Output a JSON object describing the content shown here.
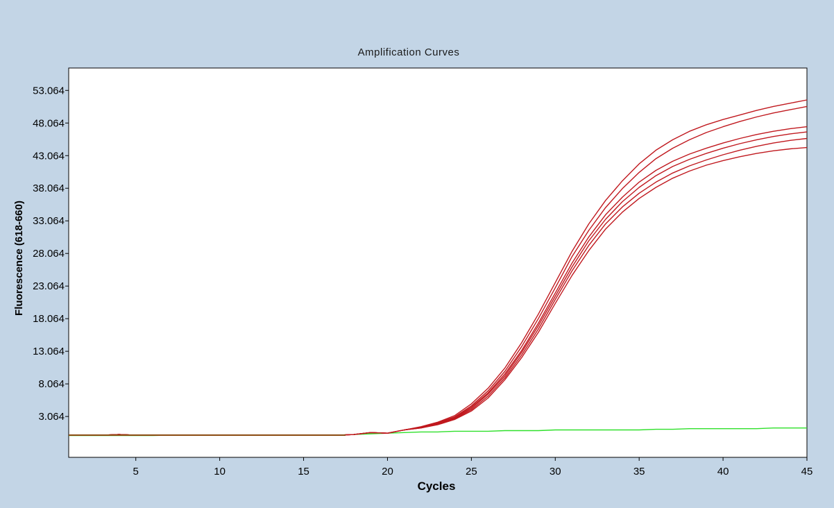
{
  "chart_data": {
    "type": "line",
    "title": "Amplification Curves",
    "xlabel": "Cycles",
    "ylabel": "Fluorescence (618-660)",
    "xlim": [
      1,
      45
    ],
    "ylim": [
      -3.2,
      56.5
    ],
    "x_ticks": [
      5,
      10,
      15,
      20,
      25,
      30,
      35,
      40,
      45
    ],
    "y_ticks": [
      3.064,
      8.064,
      13.064,
      18.064,
      23.064,
      28.064,
      33.064,
      38.064,
      43.064,
      48.064,
      53.064
    ],
    "y_tick_labels": [
      "3.064",
      "8.064",
      "13.064",
      "18.064",
      "23.064",
      "28.064",
      "33.064",
      "38.064",
      "43.064",
      "48.064",
      "53.064"
    ],
    "grid": false,
    "legend": "none",
    "colors": {
      "positive": "#c0181e",
      "negative": "#2ee02a",
      "baseline_overlap": "#8a4a10"
    },
    "x": [
      1,
      2,
      3,
      4,
      5,
      6,
      7,
      8,
      9,
      10,
      11,
      12,
      13,
      14,
      15,
      16,
      17,
      18,
      19,
      20,
      21,
      22,
      23,
      24,
      25,
      26,
      27,
      28,
      29,
      30,
      31,
      32,
      33,
      34,
      35,
      36,
      37,
      38,
      39,
      40,
      41,
      42,
      43,
      44,
      45
    ],
    "series": [
      {
        "color": "#c0181e",
        "values": [
          0.2,
          0.2,
          0.2,
          0.3,
          0.2,
          0.2,
          0.2,
          0.2,
          0.2,
          0.2,
          0.2,
          0.2,
          0.2,
          0.2,
          0.2,
          0.2,
          0.2,
          0.3,
          0.6,
          0.5,
          1.0,
          1.5,
          2.2,
          3.2,
          5.0,
          7.4,
          10.5,
          14.4,
          18.8,
          23.6,
          28.4,
          32.6,
          36.2,
          39.2,
          41.8,
          43.9,
          45.5,
          46.8,
          47.8,
          48.6,
          49.3,
          50.0,
          50.6,
          51.1,
          51.6
        ]
      },
      {
        "color": "#c0181e",
        "values": [
          0.2,
          0.2,
          0.2,
          0.3,
          0.2,
          0.2,
          0.2,
          0.2,
          0.2,
          0.2,
          0.2,
          0.2,
          0.2,
          0.2,
          0.2,
          0.2,
          0.2,
          0.3,
          0.6,
          0.5,
          1.0,
          1.4,
          2.1,
          3.0,
          4.7,
          7.0,
          10.0,
          13.8,
          18.1,
          22.8,
          27.6,
          31.6,
          35.1,
          38.0,
          40.5,
          42.6,
          44.2,
          45.5,
          46.6,
          47.5,
          48.3,
          49.0,
          49.6,
          50.1,
          50.6
        ]
      },
      {
        "color": "#c0181e",
        "values": [
          0.2,
          0.2,
          0.2,
          0.3,
          0.2,
          0.2,
          0.2,
          0.2,
          0.2,
          0.2,
          0.2,
          0.2,
          0.2,
          0.2,
          0.2,
          0.2,
          0.2,
          0.3,
          0.6,
          0.5,
          1.0,
          1.4,
          2.0,
          2.9,
          4.5,
          6.7,
          9.6,
          13.2,
          17.4,
          22.0,
          26.6,
          30.6,
          34.0,
          36.7,
          39.0,
          40.8,
          42.2,
          43.3,
          44.2,
          45.0,
          45.7,
          46.3,
          46.8,
          47.2,
          47.5
        ]
      },
      {
        "color": "#c0181e",
        "values": [
          0.2,
          0.2,
          0.2,
          0.3,
          0.2,
          0.2,
          0.2,
          0.2,
          0.2,
          0.2,
          0.2,
          0.2,
          0.2,
          0.2,
          0.2,
          0.2,
          0.2,
          0.3,
          0.6,
          0.5,
          1.0,
          1.4,
          2.0,
          2.8,
          4.3,
          6.5,
          9.3,
          12.9,
          17.0,
          21.5,
          26.0,
          30.0,
          33.3,
          36.0,
          38.2,
          40.0,
          41.4,
          42.5,
          43.4,
          44.2,
          44.9,
          45.5,
          46.0,
          46.4,
          46.7
        ]
      },
      {
        "color": "#c0181e",
        "values": [
          0.2,
          0.2,
          0.2,
          0.3,
          0.2,
          0.2,
          0.2,
          0.2,
          0.2,
          0.2,
          0.2,
          0.2,
          0.2,
          0.2,
          0.2,
          0.2,
          0.2,
          0.3,
          0.6,
          0.5,
          1.0,
          1.3,
          1.9,
          2.7,
          4.1,
          6.2,
          9.0,
          12.5,
          16.5,
          21.0,
          25.4,
          29.3,
          32.6,
          35.2,
          37.3,
          39.0,
          40.4,
          41.5,
          42.4,
          43.2,
          43.9,
          44.5,
          45.0,
          45.4,
          45.7
        ]
      },
      {
        "color": "#c0181e",
        "values": [
          0.2,
          0.2,
          0.2,
          0.3,
          0.2,
          0.2,
          0.2,
          0.2,
          0.2,
          0.2,
          0.2,
          0.2,
          0.2,
          0.2,
          0.2,
          0.2,
          0.2,
          0.3,
          0.6,
          0.5,
          1.0,
          1.3,
          1.8,
          2.6,
          3.9,
          5.9,
          8.7,
          12.1,
          16.0,
          20.4,
          24.7,
          28.5,
          31.8,
          34.4,
          36.5,
          38.2,
          39.6,
          40.7,
          41.6,
          42.3,
          42.9,
          43.4,
          43.8,
          44.1,
          44.3
        ]
      },
      {
        "color": "#2ee02a",
        "values": [
          0.15,
          0.15,
          0.15,
          0.15,
          0.15,
          0.15,
          0.2,
          0.2,
          0.2,
          0.2,
          0.2,
          0.2,
          0.2,
          0.2,
          0.2,
          0.2,
          0.2,
          0.3,
          0.4,
          0.5,
          0.6,
          0.7,
          0.7,
          0.8,
          0.8,
          0.8,
          0.9,
          0.9,
          0.9,
          1.0,
          1.0,
          1.0,
          1.0,
          1.0,
          1.0,
          1.1,
          1.1,
          1.2,
          1.2,
          1.2,
          1.2,
          1.2,
          1.3,
          1.3,
          1.3
        ]
      }
    ]
  }
}
